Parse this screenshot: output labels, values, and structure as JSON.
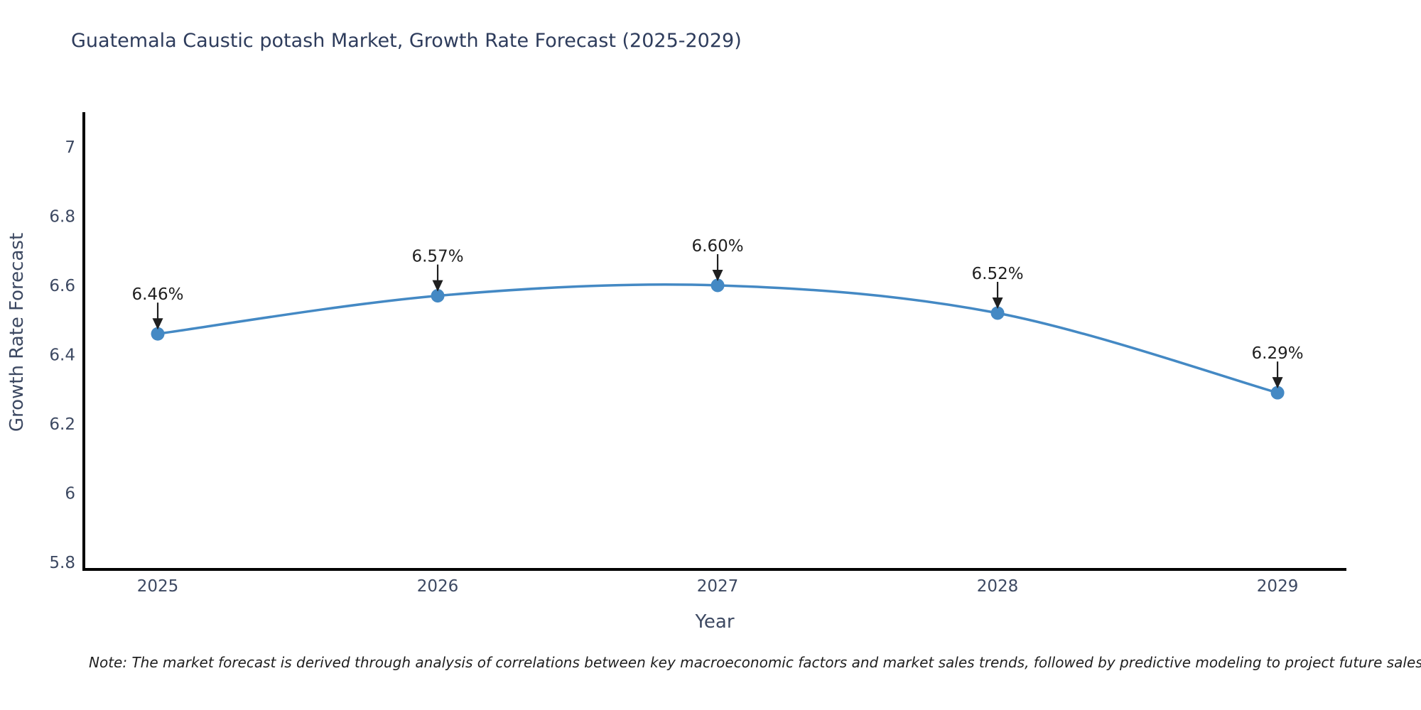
{
  "chart_data": {
    "type": "line",
    "title": "Guatemala Caustic potash Market, Growth Rate Forecast (2025-2029)",
    "xlabel": "Year",
    "ylabel": "Growth Rate Forecast",
    "x": [
      2025,
      2026,
      2027,
      2028,
      2029
    ],
    "xtick_labels": [
      "2025",
      "2026",
      "2027",
      "2028",
      "2029"
    ],
    "series": [
      {
        "name": "Growth Rate Forecast",
        "values": [
          6.46,
          6.57,
          6.6,
          6.52,
          6.29
        ]
      }
    ],
    "point_labels": [
      "6.46%",
      "6.57%",
      "6.60%",
      "6.52%",
      "6.29%"
    ],
    "yticks": [
      5.8,
      6.0,
      6.2,
      6.4,
      6.6,
      6.8,
      7.0
    ],
    "ytick_labels": [
      "5.8",
      "6",
      "6.2",
      "6.4",
      "6.6",
      "6.8",
      "7"
    ],
    "ylim": [
      5.78,
      7.1
    ],
    "xlim": [
      2024.736,
      2029.246
    ],
    "grid": false,
    "legend": null,
    "line_color": "#4489c4",
    "marker_color": "#4489c4",
    "axis_color": "#000000",
    "tick_label_color": "#3d4962",
    "title_color": "#2e3c5c",
    "annotation_color": "#1f1f1f"
  },
  "note": {
    "text": "Note: The market forecast is derived through analysis of correlations between key macroeconomic factors and market sales trends, followed by predictive modeling to project future sales"
  }
}
